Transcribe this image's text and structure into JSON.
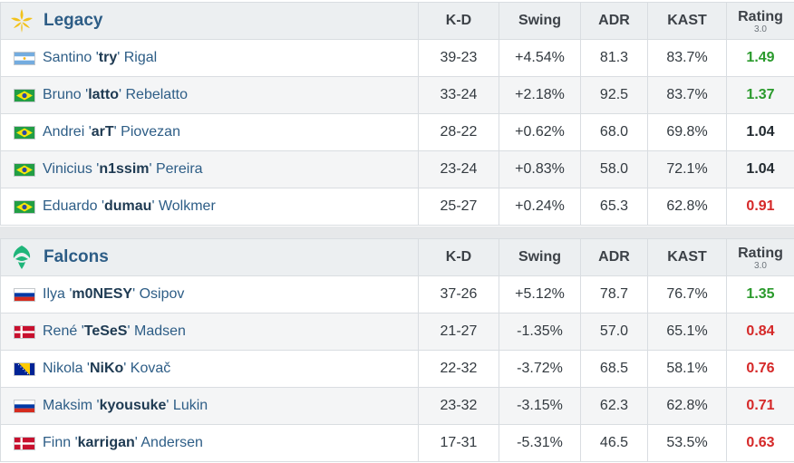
{
  "columns": {
    "kd": "K-D",
    "swing": "Swing",
    "adr": "ADR",
    "kast": "KAST",
    "rating": "Rating",
    "rating_version": "3.0"
  },
  "teams": [
    {
      "name": "Legacy",
      "logo_icon": "legacy-logo-icon",
      "accent": "#f2c21b",
      "players": [
        {
          "first": "Santino '",
          "nick": "try",
          "last": "' Rigal",
          "flag": "argentina-flag-icon",
          "kd": "39-23",
          "swing": "+4.54%",
          "swing_type": "pos",
          "adr": "81.3",
          "kast": "83.7%",
          "rating": "1.49",
          "rating_type": "good"
        },
        {
          "first": "Bruno '",
          "nick": "latto",
          "last": "' Rebelatto",
          "flag": "brazil-flag-icon",
          "kd": "33-24",
          "swing": "+2.18%",
          "swing_type": "pos",
          "adr": "92.5",
          "kast": "83.7%",
          "rating": "1.37",
          "rating_type": "good"
        },
        {
          "first": "Andrei '",
          "nick": "arT",
          "last": "' Piovezan",
          "flag": "brazil-flag-icon",
          "kd": "28-22",
          "swing": "+0.62%",
          "swing_type": "neu",
          "adr": "68.0",
          "kast": "69.8%",
          "rating": "1.04",
          "rating_type": "avg"
        },
        {
          "first": "Vinicius '",
          "nick": "n1ssim",
          "last": "' Pereira",
          "flag": "brazil-flag-icon",
          "kd": "23-24",
          "swing": "+0.83%",
          "swing_type": "neu",
          "adr": "58.0",
          "kast": "72.1%",
          "rating": "1.04",
          "rating_type": "avg"
        },
        {
          "first": "Eduardo '",
          "nick": "dumau",
          "last": "' Wolkmer",
          "flag": "brazil-flag-icon",
          "kd": "25-27",
          "swing": "+0.24%",
          "swing_type": "neu",
          "adr": "65.3",
          "kast": "62.8%",
          "rating": "0.91",
          "rating_type": "bad"
        }
      ]
    },
    {
      "name": "Falcons",
      "logo_icon": "falcons-logo-icon",
      "accent": "#1fb57a",
      "players": [
        {
          "first": "Ilya '",
          "nick": "m0NESY",
          "last": "' Osipov",
          "flag": "russia-flag-icon",
          "kd": "37-26",
          "swing": "+5.12%",
          "swing_type": "pos",
          "adr": "78.7",
          "kast": "76.7%",
          "rating": "1.35",
          "rating_type": "good"
        },
        {
          "first": "René '",
          "nick": "TeSeS",
          "last": "' Madsen",
          "flag": "denmark-flag-icon",
          "kd": "21-27",
          "swing": "-1.35%",
          "swing_type": "neg",
          "adr": "57.0",
          "kast": "65.1%",
          "rating": "0.84",
          "rating_type": "bad"
        },
        {
          "first": "Nikola '",
          "nick": "NiKo",
          "last": "' Kovač",
          "flag": "bosnia-flag-icon",
          "kd": "22-32",
          "swing": "-3.72%",
          "swing_type": "neg",
          "adr": "68.5",
          "kast": "58.1%",
          "rating": "0.76",
          "rating_type": "bad"
        },
        {
          "first": "Maksim '",
          "nick": "kyousuke",
          "last": "' Lukin",
          "flag": "russia-flag-icon",
          "kd": "23-32",
          "swing": "-3.15%",
          "swing_type": "neg",
          "adr": "62.3",
          "kast": "62.8%",
          "rating": "0.71",
          "rating_type": "bad"
        },
        {
          "first": "Finn '",
          "nick": "karrigan",
          "last": "' Andersen",
          "flag": "denmark-flag-icon",
          "kd": "17-31",
          "swing": "-5.31%",
          "swing_type": "neg",
          "adr": "46.5",
          "kast": "53.5%",
          "rating": "0.63",
          "rating_type": "bad"
        }
      ]
    }
  ]
}
